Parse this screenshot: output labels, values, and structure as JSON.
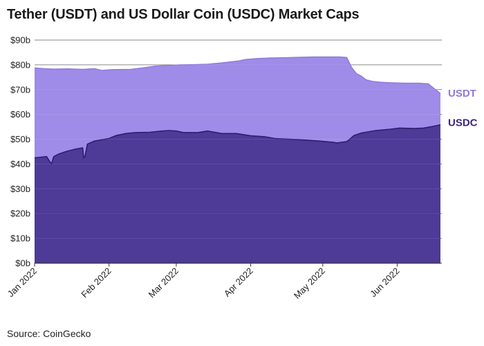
{
  "title": "Tether (USDT) and US Dollar Coin (USDC) Market Caps",
  "source": "Source: CoinGecko",
  "colors": {
    "usdt": "#9f8be8",
    "usdc": "#4e3a97",
    "usdc_line": "#2e1d6e",
    "usdt_label": "#8f78e0",
    "usdc_label": "#3a2380",
    "grid": "#555555"
  },
  "chart_data": {
    "type": "area",
    "title": "Tether (USDT) and US Dollar Coin (USDC) Market Caps",
    "xlabel": "",
    "ylabel": "",
    "stacked": true,
    "ylim": [
      0,
      90
    ],
    "y_ticks": [
      0,
      10,
      20,
      30,
      40,
      50,
      60,
      70,
      80,
      90
    ],
    "y_tick_labels": [
      "$0b",
      "$10b",
      "$20b",
      "$30b",
      "$40b",
      "$50b",
      "$60b",
      "$70b",
      "$80b",
      "$90b"
    ],
    "x_tick_labels": [
      {
        "label": "Jan 2022",
        "day": 0
      },
      {
        "label": "Feb 2022",
        "day": 31
      },
      {
        "label": "Mar 2022",
        "day": 59
      },
      {
        "label": "Apr 2022",
        "day": 90
      },
      {
        "label": "May 2022",
        "day": 120
      },
      {
        "label": "Jun 2022",
        "day": 151
      }
    ],
    "x_range_days": [
      0,
      169
    ],
    "series": [
      {
        "name": "USDC",
        "label": "USDC",
        "points": [
          [
            0,
            42.5
          ],
          [
            5,
            43
          ],
          [
            6,
            41.5
          ],
          [
            7,
            40
          ],
          [
            8,
            43
          ],
          [
            10,
            44
          ],
          [
            13,
            45
          ],
          [
            17,
            46
          ],
          [
            20,
            46.5
          ],
          [
            20.5,
            42.5
          ],
          [
            21,
            43
          ],
          [
            22,
            48
          ],
          [
            25,
            49.3
          ],
          [
            28,
            49.8
          ],
          [
            31,
            50.3
          ],
          [
            34,
            51.5
          ],
          [
            38,
            52.3
          ],
          [
            42,
            52.7
          ],
          [
            48,
            52.8
          ],
          [
            53,
            53.3
          ],
          [
            56,
            53.5
          ],
          [
            59,
            53.3
          ],
          [
            62,
            52.7
          ],
          [
            68,
            52.7
          ],
          [
            72,
            53.3
          ],
          [
            78,
            52.3
          ],
          [
            84,
            52.3
          ],
          [
            90,
            51.4
          ],
          [
            96,
            51
          ],
          [
            100,
            50.3
          ],
          [
            106,
            50
          ],
          [
            112,
            49.7
          ],
          [
            118,
            49.3
          ],
          [
            124,
            48.8
          ],
          [
            126,
            48.5
          ],
          [
            130,
            49
          ],
          [
            133,
            51.5
          ],
          [
            136,
            52.5
          ],
          [
            142,
            53.5
          ],
          [
            148,
            54
          ],
          [
            152,
            54.5
          ],
          [
            158,
            54.3
          ],
          [
            162,
            54.5
          ],
          [
            165,
            55
          ],
          [
            169,
            55.8
          ]
        ]
      },
      {
        "name": "USDT",
        "label": "USDT",
        "points": [
          [
            0,
            78.8
          ],
          [
            4,
            78.5
          ],
          [
            8,
            78.3
          ],
          [
            14,
            78.4
          ],
          [
            20,
            78.2
          ],
          [
            25,
            78.5
          ],
          [
            28,
            77.8
          ],
          [
            32,
            78.1
          ],
          [
            40,
            78.2
          ],
          [
            45,
            78.8
          ],
          [
            50,
            79.5
          ],
          [
            56,
            79.8
          ],
          [
            60,
            80
          ],
          [
            66,
            80.1
          ],
          [
            72,
            80.3
          ],
          [
            78,
            80.8
          ],
          [
            85,
            81.6
          ],
          [
            88,
            82.2
          ],
          [
            92,
            82.5
          ],
          [
            98,
            82.8
          ],
          [
            104,
            82.9
          ],
          [
            110,
            83.1
          ],
          [
            116,
            83.2
          ],
          [
            122,
            83.2
          ],
          [
            127,
            83.2
          ],
          [
            130,
            83
          ],
          [
            131,
            81
          ],
          [
            132,
            79
          ],
          [
            134,
            76.5
          ],
          [
            136,
            75.5
          ],
          [
            138,
            74
          ],
          [
            141,
            73.3
          ],
          [
            144,
            73
          ],
          [
            148,
            72.8
          ],
          [
            154,
            72.6
          ],
          [
            160,
            72.6
          ],
          [
            164,
            72.4
          ],
          [
            165,
            71.5
          ],
          [
            167,
            70
          ],
          [
            169,
            68.5
          ]
        ]
      }
    ]
  }
}
